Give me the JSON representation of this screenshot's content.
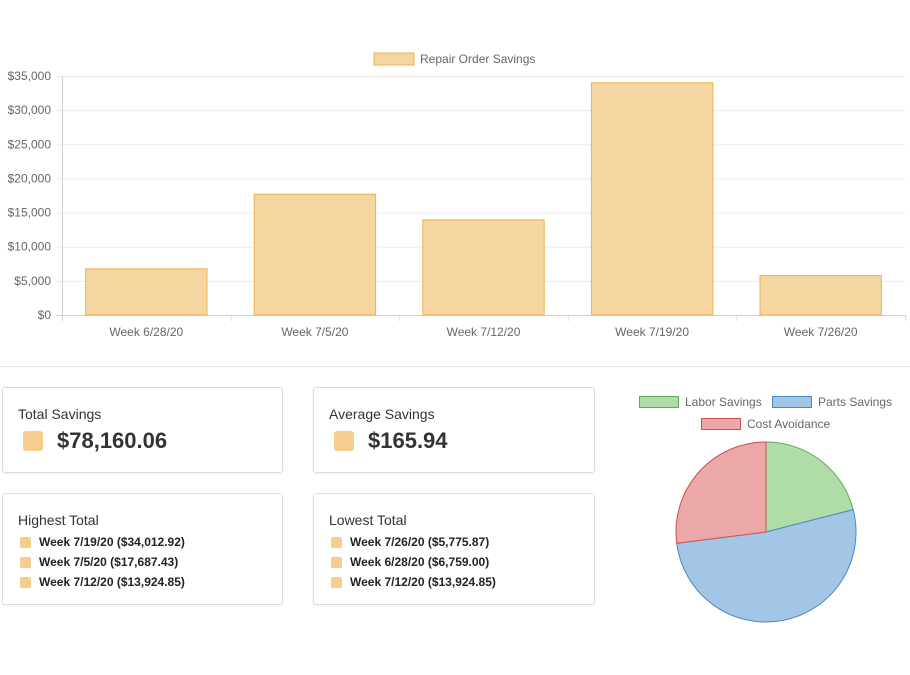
{
  "colors": {
    "bar_fill": "#f5d5a0",
    "bar_stroke": "#f0b050",
    "swatch": "#f5cd8c",
    "labor_fill": "#b0dca8",
    "labor_stroke": "#5aaf50",
    "parts_fill": "#a4c6e6",
    "parts_stroke": "#4a8ac4",
    "cost_fill": "#eca8a8",
    "cost_stroke": "#d05050"
  },
  "chart_data": [
    {
      "type": "bar",
      "title": "",
      "legend": [
        "Repair Order Savings"
      ],
      "categories": [
        "Week 6/28/20",
        "Week 7/5/20",
        "Week 7/12/20",
        "Week 7/19/20",
        "Week 7/26/20"
      ],
      "values": [
        6759.0,
        17687.43,
        13924.85,
        34012.92,
        5775.87
      ],
      "ylim": [
        0,
        35000
      ],
      "yticks": [
        0,
        5000,
        10000,
        15000,
        20000,
        25000,
        30000,
        35000
      ],
      "ytick_labels": [
        "$0",
        "$5,000",
        "$10,000",
        "$15,000",
        "$20,000",
        "$25,000",
        "$30,000",
        "$35,000"
      ],
      "xlabel": "",
      "ylabel": "",
      "grid": true,
      "legend_position": "top"
    },
    {
      "type": "pie",
      "labels": [
        "Labor Savings",
        "Parts Savings",
        "Cost Avoidance"
      ],
      "values": [
        21,
        52,
        27
      ],
      "legend_position": "top"
    }
  ],
  "stats": {
    "total": {
      "label": "Total Savings",
      "value": "$78,160.06"
    },
    "average": {
      "label": "Average Savings",
      "value": "$165.94"
    },
    "highest": {
      "label": "Highest Total",
      "items": [
        "Week 7/19/20 ($34,012.92)",
        "Week 7/5/20 ($17,687.43)",
        "Week 7/12/20 ($13,924.85)"
      ]
    },
    "lowest": {
      "label": "Lowest Total",
      "items": [
        "Week 7/26/20 ($5,775.87)",
        "Week 6/28/20 ($6,759.00)",
        "Week 7/12/20 ($13,924.85)"
      ]
    }
  }
}
